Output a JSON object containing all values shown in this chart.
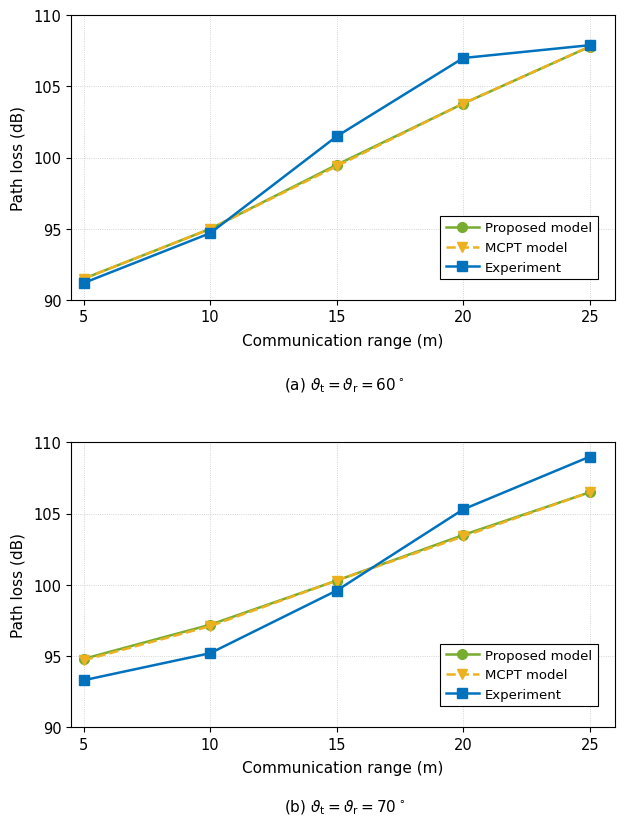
{
  "x": [
    5,
    10,
    15,
    20,
    25
  ],
  "subplot_a": {
    "proposed": [
      91.5,
      95.0,
      99.5,
      103.8,
      107.8
    ],
    "mcpt": [
      91.5,
      95.0,
      99.4,
      103.8,
      107.8
    ],
    "experiment": [
      91.2,
      94.7,
      101.5,
      107.0,
      107.9
    ],
    "title": "(a) $\\vartheta_{\\mathrm{t}} = \\vartheta_{\\mathrm{r}} = 60\\,^{\\circ}$"
  },
  "subplot_b": {
    "proposed": [
      94.8,
      97.2,
      100.3,
      103.5,
      106.5
    ],
    "mcpt": [
      94.7,
      97.1,
      100.3,
      103.4,
      106.5
    ],
    "experiment": [
      93.3,
      95.2,
      99.6,
      105.3,
      109.0
    ],
    "title": "(b) $\\vartheta_{\\mathrm{t}} = \\vartheta_{\\mathrm{r}} = 70\\,^{\\circ}$"
  },
  "color_proposed": "#77ac30",
  "color_mcpt": "#edb120",
  "color_experiment": "#0072bd",
  "xlabel": "Communication range (m)",
  "ylabel": "Path loss (dB)",
  "ylim": [
    90,
    110
  ],
  "yticks": [
    90,
    95,
    100,
    105,
    110
  ],
  "xticks": [
    5,
    10,
    15,
    20,
    25
  ],
  "legend_labels": [
    "Proposed model",
    "MCPT model",
    "Experiment"
  ],
  "linewidth": 1.8,
  "markersize": 7,
  "grid_color": "#c8c8c8",
  "background_color": "#ffffff"
}
